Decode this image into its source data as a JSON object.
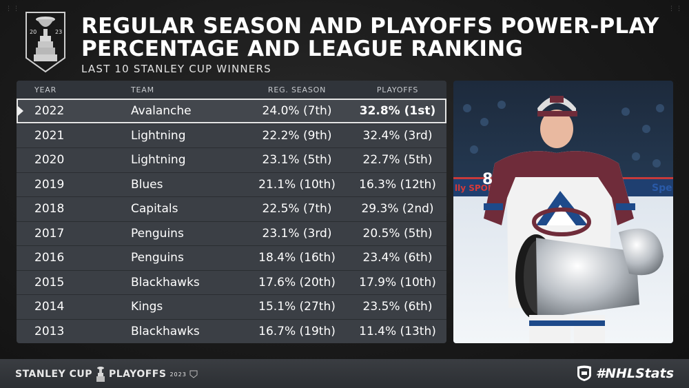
{
  "header": {
    "title": "REGULAR SEASON AND PLAYOFFS POWER-PLAY PERCENTAGE AND LEAGUE RANKING",
    "subtitle": "LAST 10 STANLEY CUP WINNERS",
    "logo_year_left": "20",
    "logo_year_right": "23"
  },
  "table": {
    "columns": [
      "YEAR",
      "TEAM",
      "REG. SEASON",
      "PLAYOFFS"
    ],
    "rows": [
      {
        "year": "2022",
        "team": "Avalanche",
        "reg": "24.0% (7th)",
        "po": "32.8% (1st)"
      },
      {
        "year": "2021",
        "team": "Lightning",
        "reg": "22.2% (9th)",
        "po": "32.4% (3rd)"
      },
      {
        "year": "2020",
        "team": "Lightning",
        "reg": "23.1% (5th)",
        "po": "22.7% (5th)"
      },
      {
        "year": "2019",
        "team": "Blues",
        "reg": "21.1% (10th)",
        "po": "16.3% (12th)"
      },
      {
        "year": "2018",
        "team": "Capitals",
        "reg": "22.5% (7th)",
        "po": "29.3% (2nd)"
      },
      {
        "year": "2017",
        "team": "Penguins",
        "reg": "23.1% (3rd)",
        "po": "20.5% (5th)"
      },
      {
        "year": "2016",
        "team": "Penguins",
        "reg": "18.4% (16th)",
        "po": "23.4% (6th)"
      },
      {
        "year": "2015",
        "team": "Blackhawks",
        "reg": "17.6% (20th)",
        "po": "17.9% (10th)"
      },
      {
        "year": "2014",
        "team": "Kings",
        "reg": "15.1% (27th)",
        "po": "23.5% (6th)"
      },
      {
        "year": "2013",
        "team": "Blackhawks",
        "reg": "16.7% (19th)",
        "po": "11.4% (13th)"
      }
    ]
  },
  "photo": {
    "board_text_left": "lly SPOR",
    "board_text_right": "Spe",
    "jersey_number": "8"
  },
  "footer": {
    "left_brand": "STANLEY CUP",
    "left_event": "PLAYOFFS",
    "left_year": "2023",
    "right_hashtag": "#NHLStats"
  },
  "colors": {
    "background": "#161616",
    "table_bg": "#3b3f45",
    "jersey_burgundy": "#6f2c3a",
    "accent_blue": "#1e4a8a"
  }
}
